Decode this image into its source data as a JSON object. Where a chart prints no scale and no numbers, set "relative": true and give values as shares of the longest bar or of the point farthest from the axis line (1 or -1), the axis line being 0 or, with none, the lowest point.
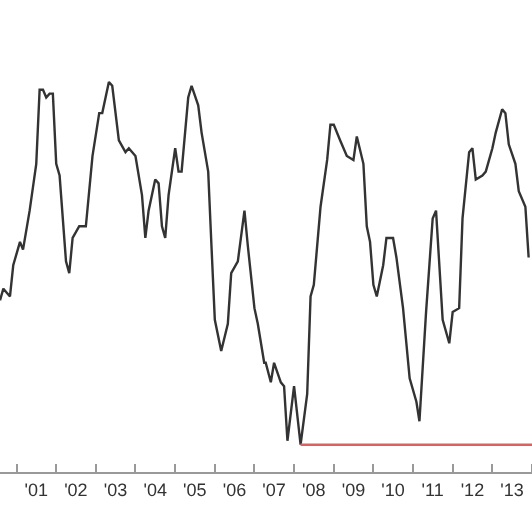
{
  "chart_data": {
    "type": "line",
    "relative": true,
    "xlim": [
      "2000-08-01",
      "2014-01-01"
    ],
    "xticks": [
      {
        "value": "2001-01-01",
        "label": null
      },
      {
        "value": "2001-07-01",
        "label": "'01"
      },
      {
        "value": "2002-01-01",
        "label": null
      },
      {
        "value": "2002-07-01",
        "label": "'02"
      },
      {
        "value": "2003-01-01",
        "label": null
      },
      {
        "value": "2003-07-01",
        "label": "'03"
      },
      {
        "value": "2004-01-01",
        "label": null
      },
      {
        "value": "2004-07-01",
        "label": "'04"
      },
      {
        "value": "2005-01-01",
        "label": null
      },
      {
        "value": "2005-07-01",
        "label": "'05"
      },
      {
        "value": "2006-01-01",
        "label": null
      },
      {
        "value": "2006-07-01",
        "label": "'06"
      },
      {
        "value": "2007-01-01",
        "label": null
      },
      {
        "value": "2007-07-01",
        "label": "'07"
      },
      {
        "value": "2008-01-01",
        "label": null
      },
      {
        "value": "2008-07-01",
        "label": "'08"
      },
      {
        "value": "2009-01-01",
        "label": null
      },
      {
        "value": "2009-07-01",
        "label": "'09"
      },
      {
        "value": "2010-01-01",
        "label": null
      },
      {
        "value": "2010-07-01",
        "label": "'10"
      },
      {
        "value": "2011-01-01",
        "label": null
      },
      {
        "value": "2011-07-01",
        "label": "'11"
      },
      {
        "value": "2012-01-01",
        "label": null
      },
      {
        "value": "2012-07-01",
        "label": "'12"
      },
      {
        "value": "2013-01-01",
        "label": null
      },
      {
        "value": "2013-07-01",
        "label": "'13"
      },
      {
        "value": "2014-01-01",
        "label": null
      }
    ],
    "series": [
      {
        "color": "#333333",
        "x": [
          "2000-08",
          "2000-09",
          "2000-11",
          "2000-12",
          "2001-02",
          "2001-03",
          "2001-05",
          "2001-07",
          "2001-08",
          "2001-09",
          "2001-10",
          "2001-11",
          "2001-12",
          "2002-01",
          "2002-02",
          "2002-04",
          "2002-05",
          "2002-06",
          "2002-08",
          "2002-10",
          "2002-12",
          "2003-02",
          "2003-03",
          "2003-05",
          "2003-06",
          "2003-08",
          "2003-10",
          "2003-11",
          "2004-01",
          "2004-03",
          "2004-04",
          "2004-05",
          "2004-07",
          "2004-08",
          "2004-09",
          "2004-10",
          "2004-11",
          "2005-01",
          "2005-02",
          "2005-03",
          "2005-05",
          "2005-06",
          "2005-08",
          "2005-09",
          "2005-11",
          "2005-12",
          "2006-01",
          "2006-03",
          "2006-05",
          "2006-06",
          "2006-08",
          "2006-10",
          "2006-11",
          "2007-01",
          "2007-02",
          "2007-04",
          "2007-04-15",
          "2007-06",
          "2007-07",
          "2007-09",
          "2007-10",
          "2007-11",
          "2008-01",
          "2008-03",
          "2008-05",
          "2008-06",
          "2008-07",
          "2008-09",
          "2008-11",
          "2008-12",
          "2009-01",
          "2009-03",
          "2009-05",
          "2009-07",
          "2009-08",
          "2009-10",
          "2009-11",
          "2009-12",
          "2010-01",
          "2010-02",
          "2010-04",
          "2010-05",
          "2010-07",
          "2010-08",
          "2010-10",
          "2010-12",
          "2011-02",
          "2011-03",
          "2011-05",
          "2011-07",
          "2011-08",
          "2011-10",
          "2011-12",
          "2012-01",
          "2012-03",
          "2012-04",
          "2012-06",
          "2012-07",
          "2012-08",
          "2012-10",
          "2012-11",
          "2013-01",
          "2013-02",
          "2013-04",
          "2013-05",
          "2013-06",
          "2013-08",
          "2013-09",
          "2013-11",
          "2013-12"
        ],
        "values": [
          0.44,
          0.47,
          0.45,
          0.53,
          0.59,
          0.57,
          0.67,
          0.79,
          0.98,
          0.98,
          0.96,
          0.97,
          0.97,
          0.79,
          0.76,
          0.54,
          0.51,
          0.6,
          0.63,
          0.63,
          0.81,
          0.92,
          0.92,
          1.0,
          0.99,
          0.85,
          0.82,
          0.83,
          0.81,
          0.71,
          0.6,
          0.67,
          0.75,
          0.74,
          0.63,
          0.6,
          0.71,
          0.83,
          0.77,
          0.77,
          0.96,
          0.99,
          0.94,
          0.87,
          0.77,
          0.58,
          0.39,
          0.31,
          0.38,
          0.51,
          0.54,
          0.67,
          0.58,
          0.42,
          0.38,
          0.28,
          0.28,
          0.23,
          0.28,
          0.23,
          0.22,
          0.08,
          0.22,
          0.07,
          0.2,
          0.45,
          0.48,
          0.68,
          0.8,
          0.89,
          0.89,
          0.85,
          0.81,
          0.8,
          0.86,
          0.79,
          0.63,
          0.59,
          0.48,
          0.45,
          0.53,
          0.6,
          0.6,
          0.55,
          0.42,
          0.24,
          0.18,
          0.13,
          0.41,
          0.65,
          0.67,
          0.39,
          0.33,
          0.41,
          0.42,
          0.65,
          0.82,
          0.83,
          0.75,
          0.76,
          0.77,
          0.83,
          0.87,
          0.93,
          0.92,
          0.84,
          0.79,
          0.72,
          0.68,
          0.55
        ]
      },
      {
        "color": "#e06060",
        "x": [
          "2008-03",
          "2014-01"
        ],
        "values": [
          0.07,
          0.07
        ]
      }
    ]
  }
}
